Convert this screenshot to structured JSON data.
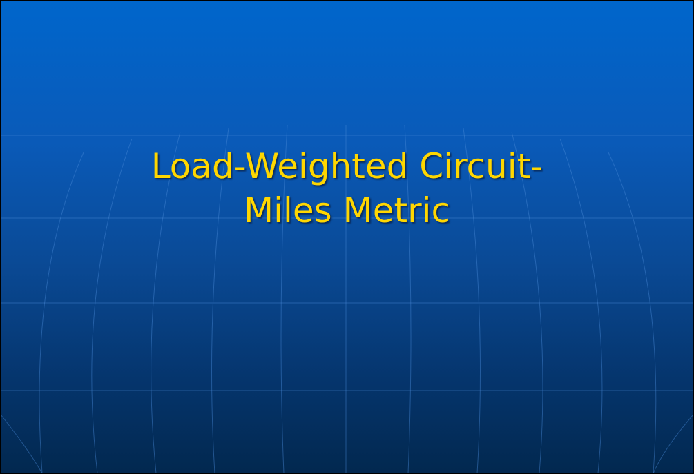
{
  "slide": {
    "title_lines": [
      "Load-Weighted Circuit-",
      "Miles Metric"
    ]
  }
}
